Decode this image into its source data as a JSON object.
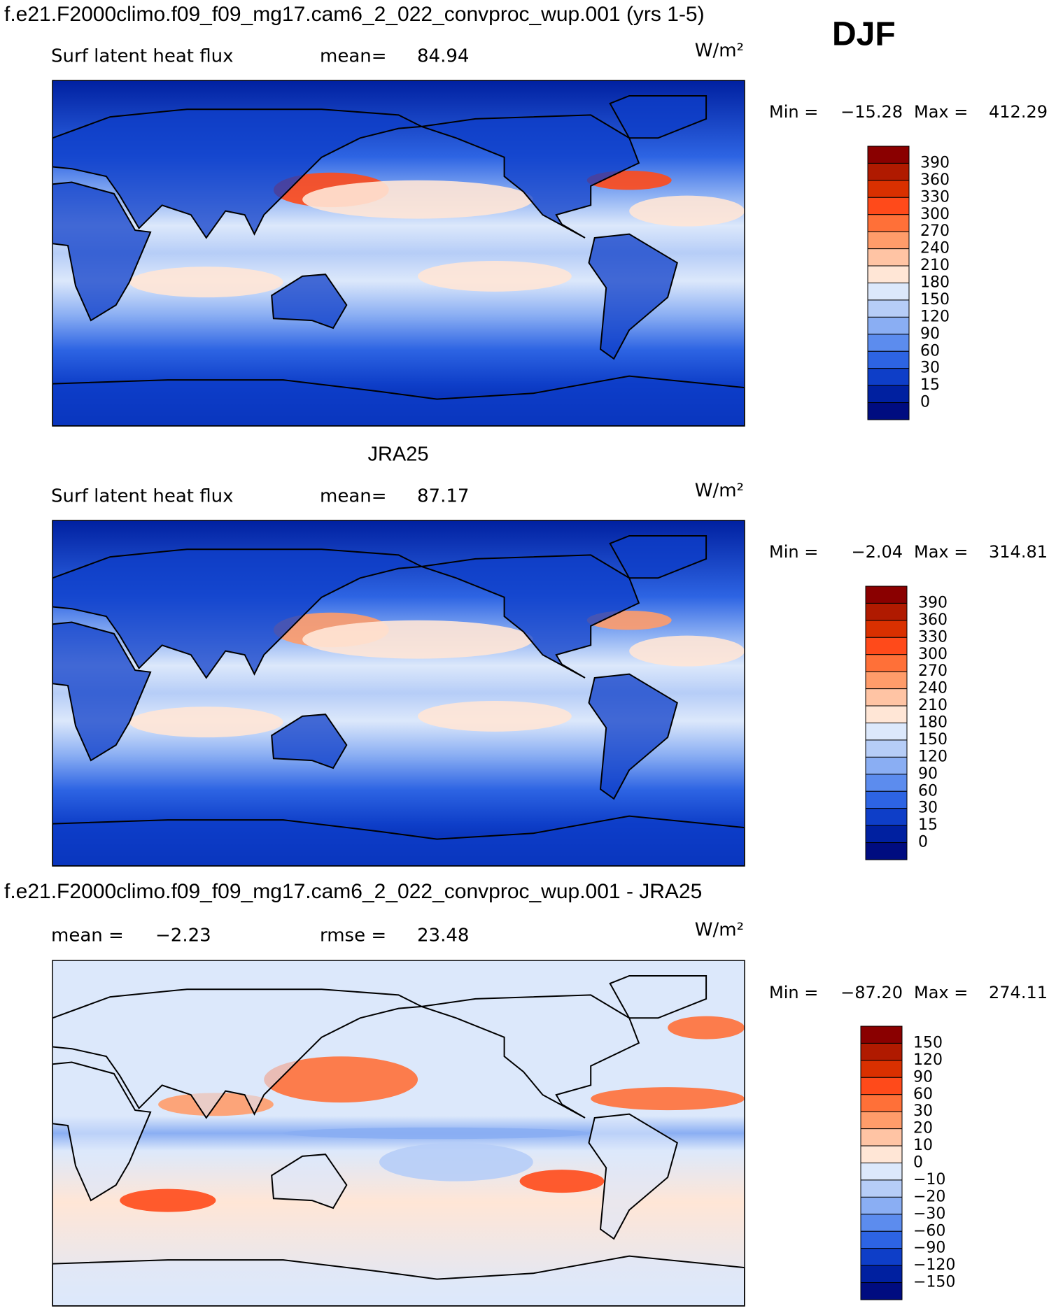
{
  "header": {
    "case_title": "f.e21.F2000climo.f09_f09_mg17.cam6_2_022_convproc_wup.001 (yrs 1-5)",
    "season": "DJF"
  },
  "panels": [
    {
      "title": null,
      "left_label": "Surf latent heat flux",
      "mean_label": "mean=",
      "mean": "84.94",
      "units": "W/m²",
      "min_label": "Min =",
      "min": "−15.28",
      "max_label": "Max =",
      "max": "412.29",
      "levels": [
        "390",
        "360",
        "330",
        "300",
        "270",
        "240",
        "210",
        "180",
        "150",
        "120",
        "90",
        "60",
        "30",
        "15",
        "0"
      ],
      "colors": [
        "#8a0000",
        "#b01a00",
        "#d93000",
        "#ff4a1a",
        "#ff7038",
        "#ff9c6a",
        "#ffc4a4",
        "#ffe6d6",
        "#dce8fb",
        "#b6cdf7",
        "#8aaef3",
        "#5c8cee",
        "#2d64e3",
        "#0e3ec8",
        "#0020a0",
        "#000c80"
      ]
    },
    {
      "title": "JRA25",
      "left_label": "Surf latent heat flux",
      "mean_label": "mean=",
      "mean": "87.17",
      "units": "W/m²",
      "min_label": "Min =",
      "min": "−2.04",
      "max_label": "Max =",
      "max": "314.81",
      "levels": [
        "390",
        "360",
        "330",
        "300",
        "270",
        "240",
        "210",
        "180",
        "150",
        "120",
        "90",
        "60",
        "30",
        "15",
        "0"
      ],
      "colors": [
        "#8a0000",
        "#b01a00",
        "#d93000",
        "#ff4a1a",
        "#ff7038",
        "#ff9c6a",
        "#ffc4a4",
        "#ffe6d6",
        "#dce8fb",
        "#b6cdf7",
        "#8aaef3",
        "#5c8cee",
        "#2d64e3",
        "#0e3ec8",
        "#0020a0",
        "#000c80"
      ]
    },
    {
      "title": "f.e21.F2000climo.f09_f09_mg17.cam6_2_022_convproc_wup.001 - JRA25",
      "left_label": "mean =",
      "mean_label": "rmse =",
      "left_value": "−2.23",
      "mean": "23.48",
      "units": "W/m²",
      "min_label": "Min =",
      "min": "−87.20",
      "max_label": "Max =",
      "max": "274.11",
      "levels": [
        "150",
        "120",
        "90",
        "60",
        "30",
        "20",
        "10",
        "0",
        "−10",
        "−20",
        "−30",
        "−60",
        "−90",
        "−120",
        "−150"
      ],
      "colors": [
        "#8a0000",
        "#b01a00",
        "#d93000",
        "#ff4a1a",
        "#ff7038",
        "#ff9c6a",
        "#ffc4a4",
        "#ffe6d6",
        "#dce8fb",
        "#b6cdf7",
        "#8aaef3",
        "#5c8cee",
        "#2d64e3",
        "#0e3ec8",
        "#0020a0",
        "#000c80"
      ]
    }
  ]
}
